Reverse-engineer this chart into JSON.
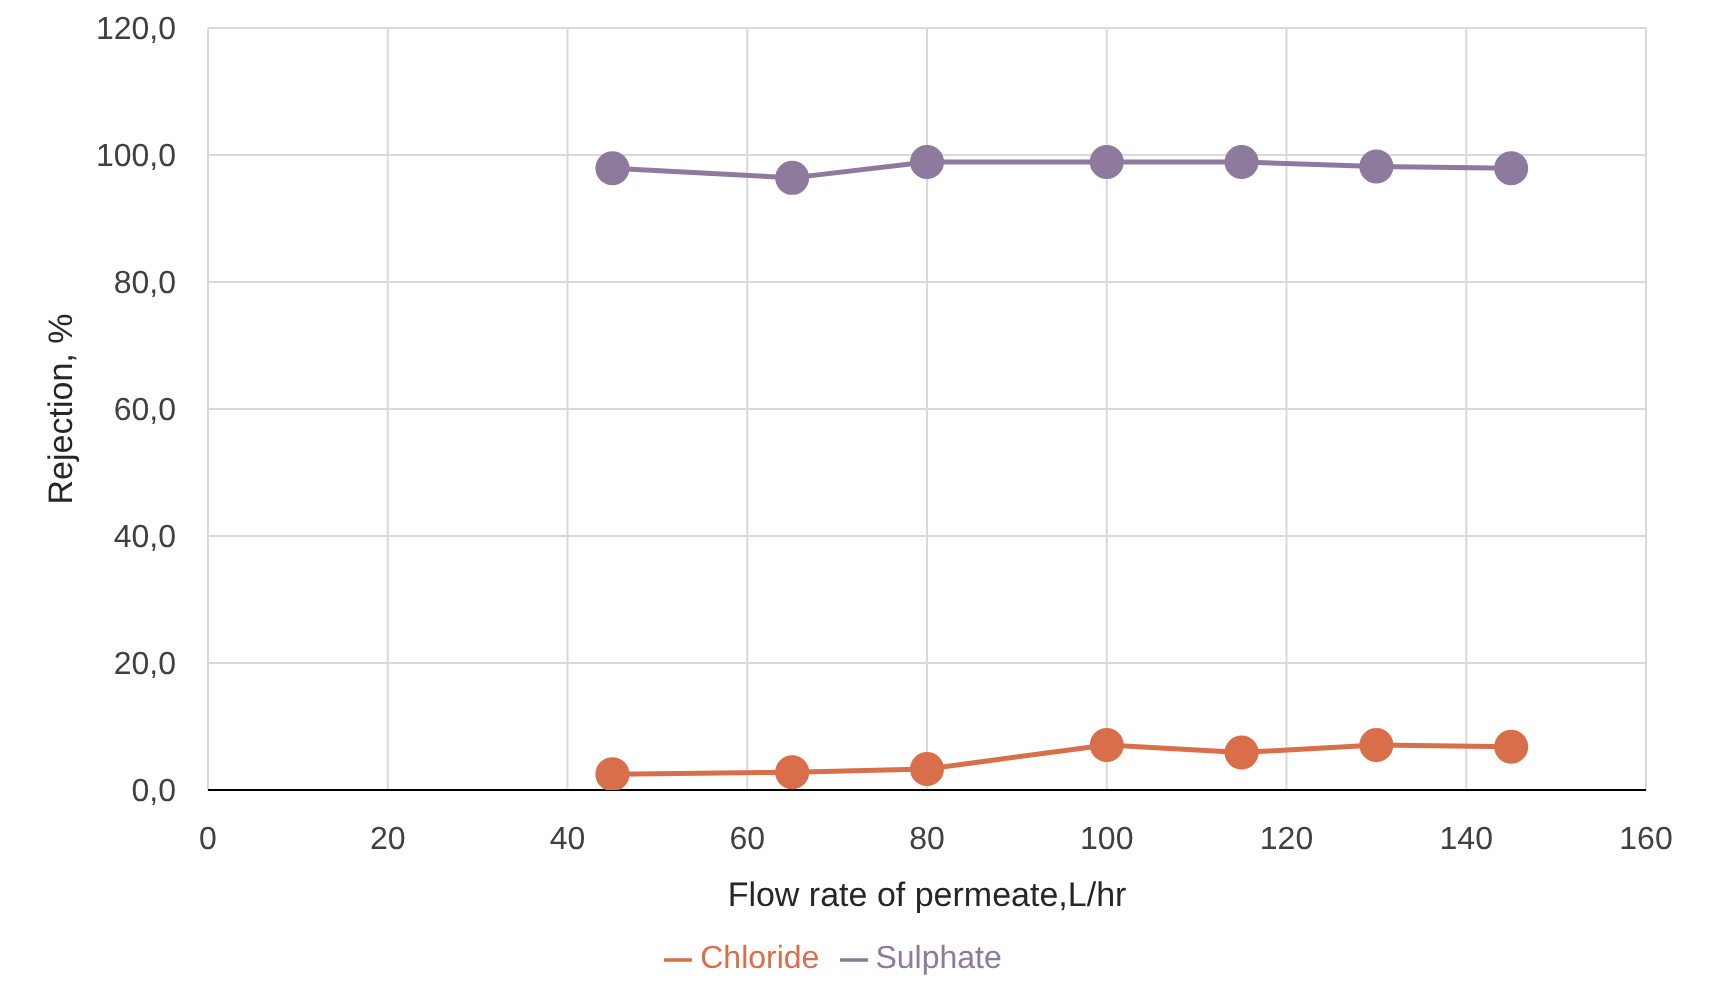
{
  "chart_data": {
    "type": "line",
    "xlabel": "Flow rate of permeate,L/hr",
    "ylabel": "Rejection, %",
    "x": [
      45,
      65,
      80,
      100,
      115,
      130,
      145
    ],
    "series": [
      {
        "name": "Chloride",
        "color": "#d86f4a",
        "values": [
          2.5,
          2.8,
          3.3,
          7.1,
          5.9,
          7.1,
          6.8
        ]
      },
      {
        "name": "Sulphate",
        "color": "#8e7a9c",
        "values": [
          97.9,
          96.4,
          98.9,
          98.9,
          98.9,
          98.2,
          97.9
        ]
      }
    ],
    "xlim": [
      0,
      160
    ],
    "xticks": [
      0,
      20,
      40,
      60,
      80,
      100,
      120,
      140,
      160
    ],
    "ylim": [
      0,
      120
    ],
    "yticks": [
      {
        "value": 0,
        "label": "0,0"
      },
      {
        "value": 20,
        "label": "20,0"
      },
      {
        "value": 40,
        "label": "40,0"
      },
      {
        "value": 60,
        "label": "60,0"
      },
      {
        "value": 80,
        "label": "80,0"
      },
      {
        "value": 100,
        "label": "100,0"
      },
      {
        "value": 120,
        "label": "120,0"
      }
    ],
    "grid": true,
    "legend": "bottom",
    "marker": "circle",
    "line_style": "solid"
  }
}
